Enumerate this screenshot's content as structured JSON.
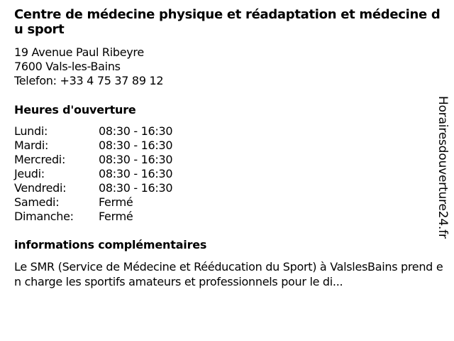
{
  "title": "Centre de médecine physique et réadaptation et médecine du sport",
  "address": {
    "street": "19 Avenue Paul Ribeyre",
    "city": "7600 Vals-les-Bains",
    "phone": "Telefon: +33 4 75 37 89 12"
  },
  "hours_heading": "Heures d'ouverture",
  "hours": [
    {
      "day": "Lundi:",
      "time": "08:30 - 16:30"
    },
    {
      "day": "Mardi:",
      "time": "08:30 - 16:30"
    },
    {
      "day": "Mercredi:",
      "time": "08:30 - 16:30"
    },
    {
      "day": "Jeudi:",
      "time": "08:30 - 16:30"
    },
    {
      "day": "Vendredi:",
      "time": "08:30 - 16:30"
    },
    {
      "day": "Samedi:",
      "time": "Fermé"
    },
    {
      "day": "Dimanche:",
      "time": "Fermé"
    }
  ],
  "info_heading": "informations complémentaires",
  "info_text": "Le SMR (Service de Médecine et Rééducation du Sport) à ValslesBains prend en charge les sportifs amateurs et professionnels pour le di...",
  "watermark": "Horairesdouverture24.fr"
}
